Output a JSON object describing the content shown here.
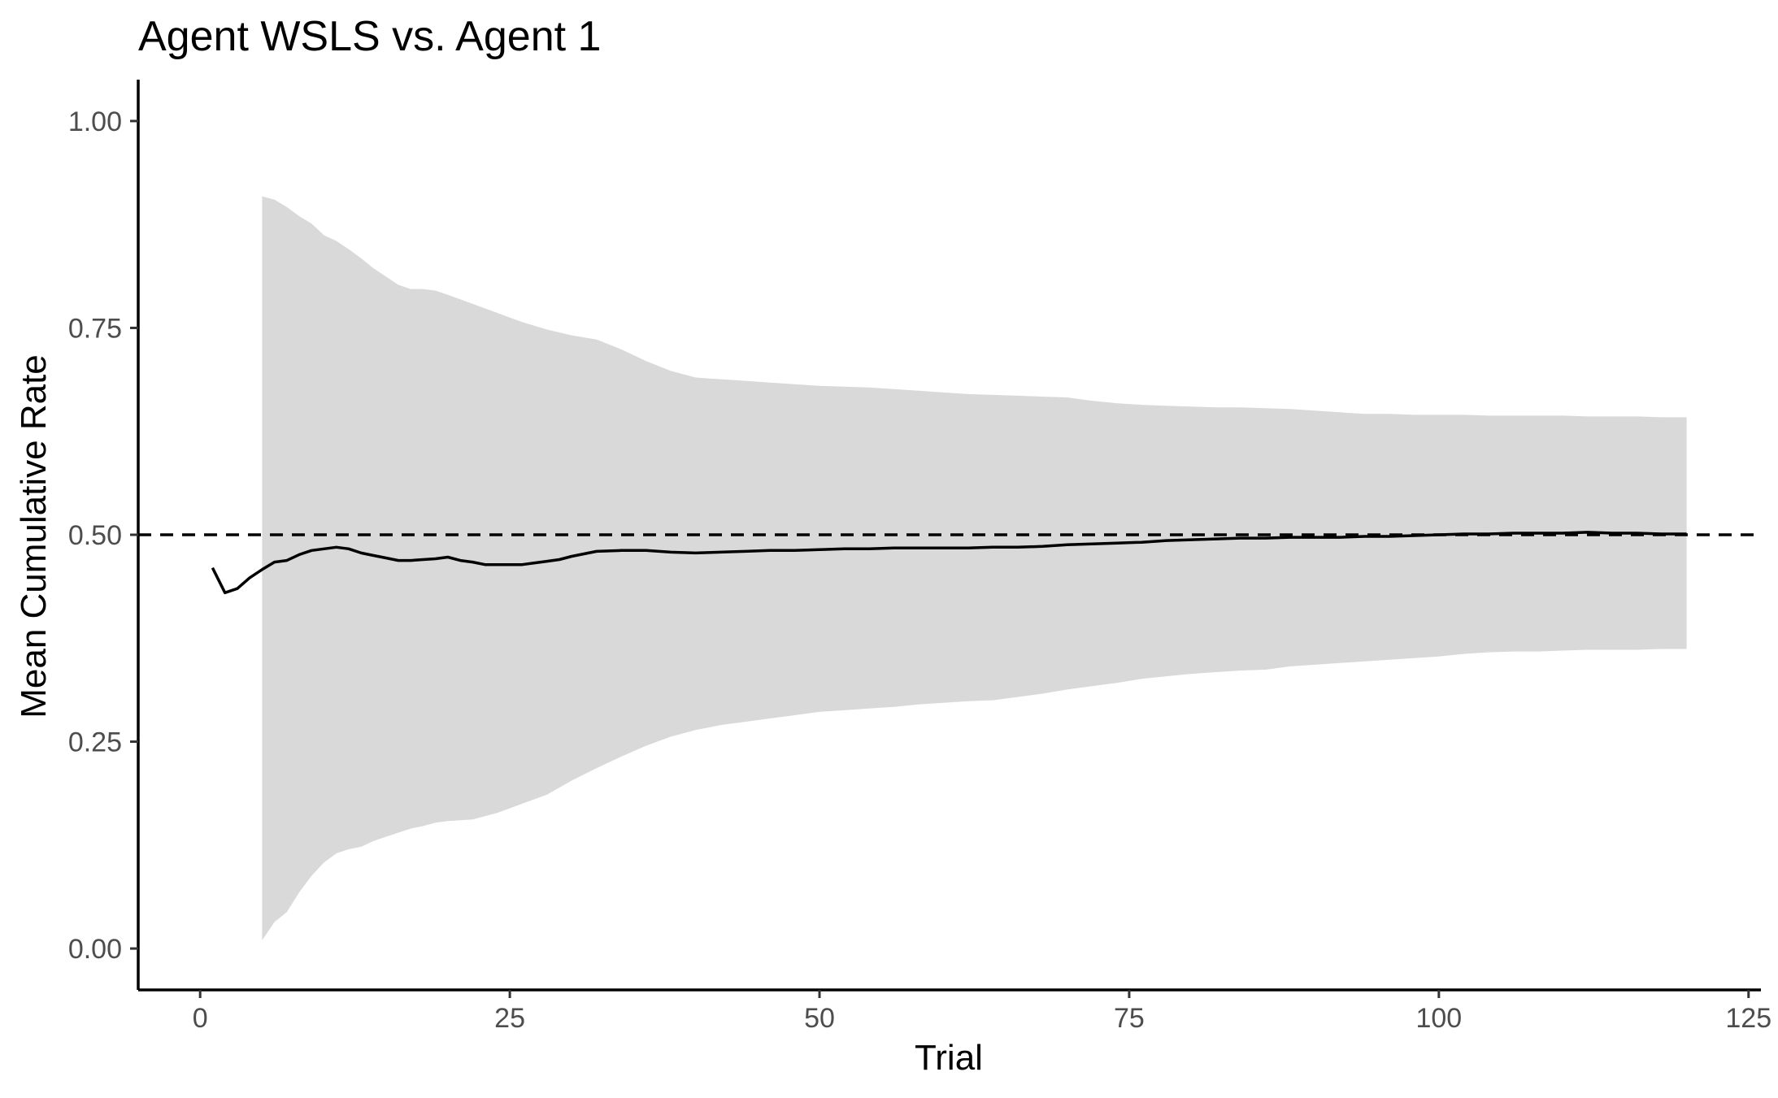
{
  "chart_data": {
    "type": "line",
    "title": "Agent WSLS vs. Agent 1",
    "xlabel": "Trial",
    "ylabel": "Mean Cumulative Rate",
    "xlim": [
      -5,
      126
    ],
    "ylim": [
      -0.05,
      1.05
    ],
    "grid": false,
    "x_ticks": [
      0,
      25,
      50,
      75,
      100,
      125
    ],
    "x_tick_labels": [
      "0",
      "25",
      "50",
      "75",
      "100",
      "125"
    ],
    "y_ticks": [
      0,
      0.25,
      0.5,
      0.75,
      1
    ],
    "y_tick_labels": [
      "0.00",
      "0.25",
      "0.50",
      "0.75",
      "1.00"
    ],
    "reference_line": {
      "y": 0.5,
      "style": "dashed",
      "color": "#000000"
    },
    "series": [
      {
        "type": "line",
        "color": "#000000",
        "x": [
          1,
          2,
          3,
          4,
          5,
          6,
          7,
          8,
          9,
          10,
          11,
          12,
          13,
          14,
          15,
          16,
          17,
          18,
          19,
          20,
          21,
          22,
          23,
          25,
          26,
          27,
          28,
          29,
          30,
          32,
          34,
          36,
          38,
          40,
          42,
          44,
          46,
          48,
          50,
          52,
          54,
          56,
          58,
          60,
          62,
          64,
          66,
          68,
          70,
          72,
          74,
          76,
          78,
          80,
          82,
          84,
          86,
          88,
          90,
          92,
          94,
          96,
          98,
          100,
          102,
          104,
          106,
          108,
          110,
          112,
          114,
          116,
          118,
          120
        ],
        "y": [
          0.46,
          0.43,
          0.435,
          0.448,
          0.458,
          0.467,
          0.469,
          0.476,
          0.481,
          0.483,
          0.485,
          0.483,
          0.478,
          0.475,
          0.472,
          0.469,
          0.469,
          0.47,
          0.471,
          0.473,
          0.469,
          0.467,
          0.464,
          0.464,
          0.464,
          0.466,
          0.468,
          0.47,
          0.474,
          0.48,
          0.481,
          0.481,
          0.479,
          0.478,
          0.479,
          0.48,
          0.481,
          0.481,
          0.482,
          0.483,
          0.483,
          0.484,
          0.484,
          0.484,
          0.484,
          0.485,
          0.485,
          0.486,
          0.488,
          0.489,
          0.49,
          0.491,
          0.493,
          0.494,
          0.495,
          0.496,
          0.496,
          0.497,
          0.497,
          0.497,
          0.498,
          0.498,
          0.499,
          0.5,
          0.501,
          0.501,
          0.502,
          0.502,
          0.502,
          0.503,
          0.502,
          0.502,
          0.501,
          0.501
        ]
      },
      {
        "type": "ribbon",
        "color": "#d9d9d9",
        "x": [
          5,
          6,
          7,
          8,
          9,
          10,
          11,
          12,
          13,
          14,
          15,
          16,
          17,
          18,
          19,
          20,
          22,
          24,
          26,
          28,
          30,
          32,
          34,
          36,
          38,
          40,
          42,
          44,
          46,
          48,
          50,
          52,
          54,
          56,
          58,
          60,
          62,
          64,
          66,
          68,
          70,
          72,
          74,
          76,
          78,
          80,
          82,
          84,
          86,
          88,
          90,
          92,
          94,
          96,
          98,
          100,
          102,
          104,
          106,
          108,
          110,
          112,
          114,
          116,
          118,
          120
        ],
        "upper": [
          0.909,
          0.905,
          0.896,
          0.885,
          0.876,
          0.862,
          0.855,
          0.845,
          0.834,
          0.822,
          0.812,
          0.802,
          0.797,
          0.797,
          0.795,
          0.79,
          0.779,
          0.768,
          0.757,
          0.748,
          0.741,
          0.736,
          0.724,
          0.71,
          0.698,
          0.69,
          0.688,
          0.686,
          0.684,
          0.682,
          0.68,
          0.679,
          0.678,
          0.676,
          0.674,
          0.672,
          0.67,
          0.669,
          0.668,
          0.667,
          0.666,
          0.662,
          0.659,
          0.657,
          0.656,
          0.655,
          0.654,
          0.654,
          0.653,
          0.652,
          0.65,
          0.648,
          0.646,
          0.646,
          0.645,
          0.645,
          0.645,
          0.644,
          0.644,
          0.644,
          0.644,
          0.643,
          0.643,
          0.643,
          0.642,
          0.642
        ],
        "lower": [
          0.01,
          0.032,
          0.044,
          0.068,
          0.088,
          0.104,
          0.115,
          0.12,
          0.123,
          0.13,
          0.135,
          0.14,
          0.145,
          0.148,
          0.152,
          0.154,
          0.156,
          0.164,
          0.175,
          0.186,
          0.203,
          0.218,
          0.232,
          0.245,
          0.256,
          0.264,
          0.27,
          0.274,
          0.278,
          0.282,
          0.286,
          0.288,
          0.29,
          0.292,
          0.295,
          0.297,
          0.299,
          0.3,
          0.304,
          0.308,
          0.313,
          0.317,
          0.321,
          0.326,
          0.329,
          0.332,
          0.334,
          0.336,
          0.337,
          0.341,
          0.343,
          0.345,
          0.347,
          0.349,
          0.351,
          0.353,
          0.356,
          0.358,
          0.359,
          0.359,
          0.36,
          0.361,
          0.361,
          0.361,
          0.362,
          0.362
        ]
      }
    ]
  }
}
